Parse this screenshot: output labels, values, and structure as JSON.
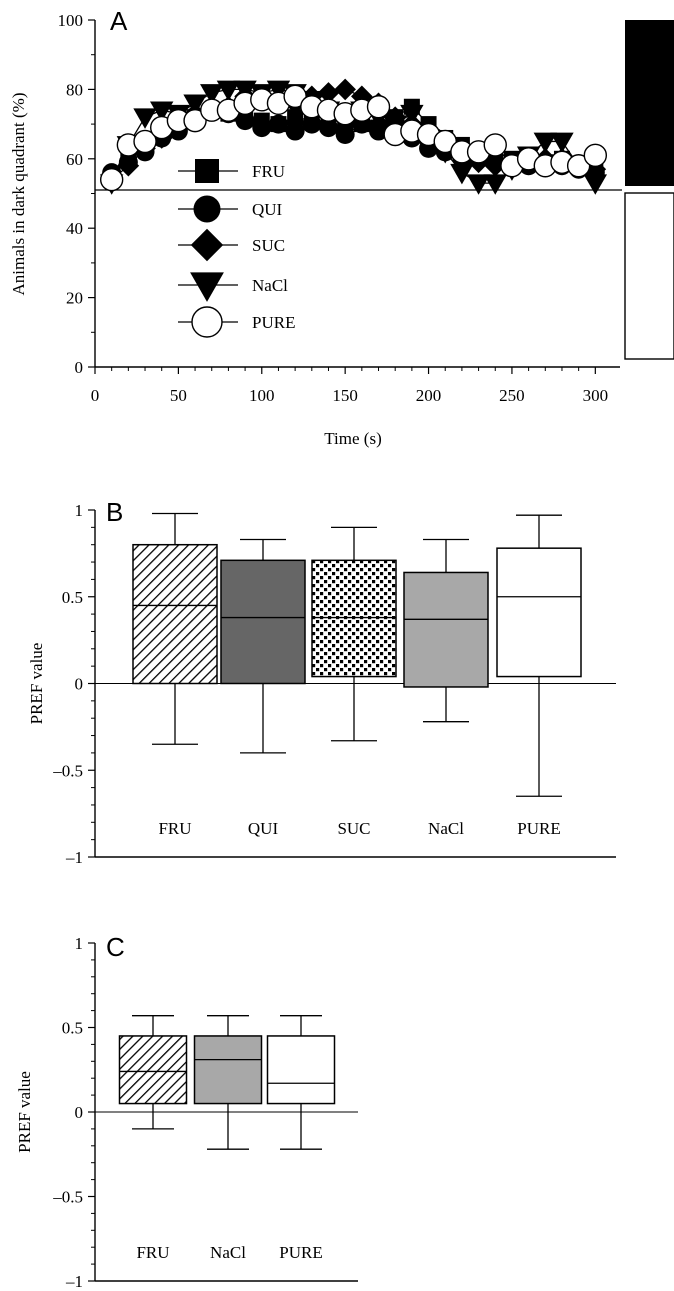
{
  "chart_data": [
    {
      "panel": "A",
      "type": "line",
      "xlabel": "Time (s)",
      "ylabel": "Animals in dark quadrant (%)",
      "xlim": [
        0,
        310
      ],
      "ylim": [
        0,
        100
      ],
      "xticks": [
        0,
        50,
        100,
        150,
        200,
        250,
        300
      ],
      "yticks": [
        0,
        20,
        40,
        60,
        80,
        100
      ],
      "reference_line": 51,
      "legend": {
        "placement": "lower-left",
        "entries": [
          "FRU",
          "QUI",
          "SUC",
          "NaCl",
          "PURE"
        ]
      },
      "x": [
        10,
        20,
        30,
        40,
        50,
        60,
        70,
        80,
        90,
        100,
        110,
        120,
        130,
        140,
        150,
        160,
        170,
        180,
        190,
        200,
        210,
        220,
        230,
        240,
        250,
        260,
        270,
        280,
        290,
        300
      ],
      "series": [
        {
          "name": "FRU",
          "marker": "square",
          "values": [
            55,
            60,
            64,
            67,
            70,
            72,
            74,
            73,
            72,
            71,
            70,
            72,
            71,
            70,
            69,
            70,
            69,
            72,
            75,
            70,
            66,
            64,
            62,
            62,
            60,
            59,
            59,
            60,
            58,
            58
          ]
        },
        {
          "name": "QUI",
          "marker": "circle",
          "values": [
            56,
            59,
            62,
            66,
            68,
            72,
            74,
            73,
            71,
            69,
            70,
            68,
            70,
            69,
            67,
            70,
            68,
            70,
            66,
            63,
            62,
            60,
            60,
            59,
            58,
            58,
            59,
            58,
            57,
            56
          ]
        },
        {
          "name": "SUC",
          "marker": "diamond",
          "values": [
            54,
            58,
            63,
            66,
            69,
            73,
            75,
            75,
            78,
            77,
            77,
            76,
            78,
            79,
            80,
            78,
            76,
            72,
            70,
            66,
            63,
            61,
            59,
            58,
            58,
            60,
            60,
            60,
            58,
            57
          ]
        },
        {
          "name": "NaCl",
          "marker": "triangle-down",
          "values": [
            53,
            64,
            72,
            74,
            73,
            76,
            79,
            80,
            80,
            79,
            80,
            79,
            77,
            74,
            73,
            74,
            72,
            70,
            73,
            66,
            62,
            56,
            53,
            53,
            57,
            61,
            65,
            65,
            58,
            53
          ]
        },
        {
          "name": "PURE",
          "marker": "circle-open",
          "values": [
            54,
            64,
            65,
            69,
            71,
            71,
            74,
            74,
            76,
            77,
            76,
            78,
            75,
            74,
            73,
            74,
            75,
            67,
            68,
            67,
            65,
            62,
            62,
            64,
            58,
            60,
            58,
            59,
            58,
            61
          ]
        }
      ],
      "side_blocks": [
        "dark",
        "light"
      ]
    },
    {
      "panel": "B",
      "type": "box",
      "ylabel": "PREF value",
      "ylim": [
        -1,
        1
      ],
      "yticks": [
        -1,
        -0.5,
        0,
        0.5,
        1
      ],
      "ytick_labels": [
        "–1",
        "–0.5",
        "0",
        "0.5",
        "1"
      ],
      "reference_line": 0,
      "categories": [
        "FRU",
        "QUI",
        "SUC",
        "NaCl",
        "PURE"
      ],
      "boxes": [
        {
          "category": "FRU",
          "fill": "diagonal-hatch",
          "whisker_low": -0.35,
          "q1": 0,
          "median": 0.45,
          "q3": 0.8,
          "whisker_high": 0.98
        },
        {
          "category": "QUI",
          "fill": "dark-gray",
          "whisker_low": -0.4,
          "q1": 0,
          "median": 0.38,
          "q3": 0.71,
          "whisker_high": 0.83
        },
        {
          "category": "SUC",
          "fill": "dot-pattern",
          "whisker_low": -0.33,
          "q1": 0.04,
          "median": 0.38,
          "q3": 0.71,
          "whisker_high": 0.9
        },
        {
          "category": "NaCl",
          "fill": "light-gray",
          "whisker_low": -0.22,
          "q1": -0.02,
          "median": 0.37,
          "q3": 0.64,
          "whisker_high": 0.83
        },
        {
          "category": "PURE",
          "fill": "white",
          "whisker_low": -0.65,
          "q1": 0.04,
          "median": 0.5,
          "q3": 0.78,
          "whisker_high": 0.97
        }
      ]
    },
    {
      "panel": "C",
      "type": "box",
      "ylabel": "PREF value",
      "ylim": [
        -1,
        1
      ],
      "yticks": [
        -1,
        -0.5,
        0,
        0.5,
        1
      ],
      "ytick_labels": [
        "–1",
        "–0.5",
        "0",
        "0.5",
        "1"
      ],
      "reference_line": 0,
      "categories": [
        "FRU",
        "NaCl",
        "PURE"
      ],
      "boxes": [
        {
          "category": "FRU",
          "fill": "diagonal-hatch",
          "whisker_low": -0.1,
          "q1": 0.05,
          "median": 0.24,
          "q3": 0.45,
          "whisker_high": 0.57
        },
        {
          "category": "NaCl",
          "fill": "light-gray",
          "whisker_low": -0.22,
          "q1": 0.05,
          "median": 0.31,
          "q3": 0.45,
          "whisker_high": 0.57
        },
        {
          "category": "PURE",
          "fill": "white",
          "whisker_low": -0.22,
          "q1": 0.05,
          "median": 0.17,
          "q3": 0.45,
          "whisker_high": 0.57
        }
      ]
    }
  ],
  "colors": {
    "ink": "#000000",
    "dark_gray": "#666666",
    "light_gray": "#a8a8a8",
    "background": "#ffffff"
  }
}
